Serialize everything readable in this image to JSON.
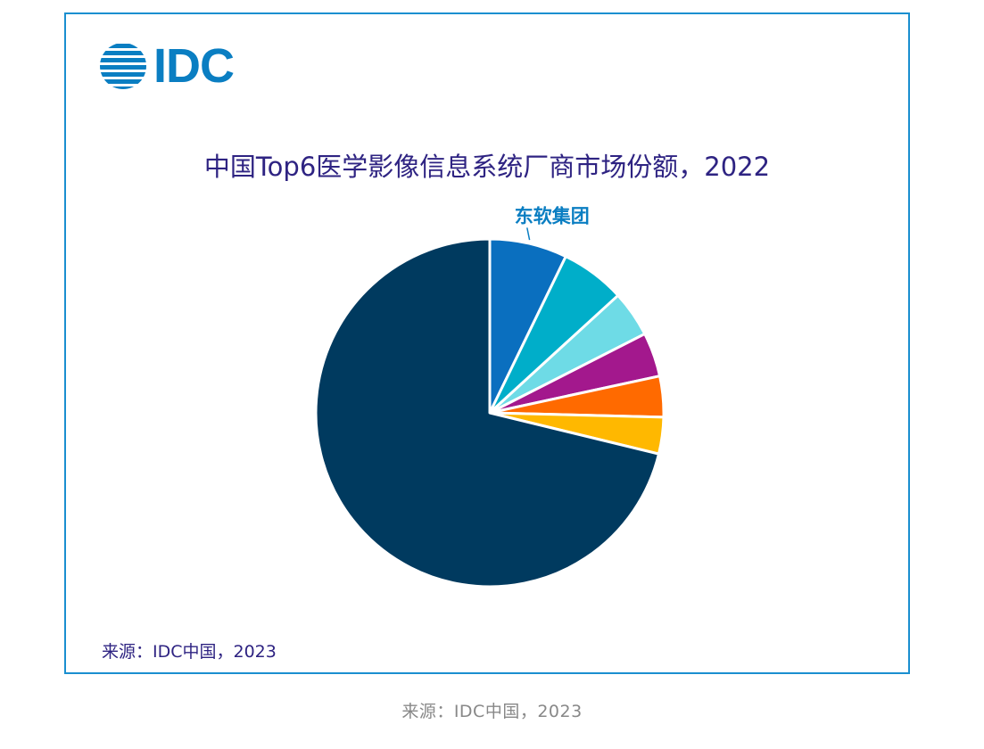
{
  "logo": {
    "text": "IDC",
    "color": "#0a7ec2"
  },
  "chart_data": {
    "type": "pie",
    "title": "中国Top6医学影像信息系统厂商市场份额，2022",
    "slices": [
      {
        "label": "东软集团",
        "value": 7.2,
        "color": "#0a6fbf"
      },
      {
        "label": "",
        "value": 6.0,
        "color": "#00aec9"
      },
      {
        "label": "",
        "value": 4.3,
        "color": "#6edbe6"
      },
      {
        "label": "",
        "value": 4.1,
        "color": "#a3188d"
      },
      {
        "label": "",
        "value": 3.8,
        "color": "#ff6a00"
      },
      {
        "label": "",
        "value": 3.4,
        "color": "#ffb800"
      },
      {
        "label": "",
        "value": 71.2,
        "color": "#003a5f"
      }
    ],
    "label_color": "#0a7ec2",
    "start_angle": "12 o'clock, clockwise"
  },
  "source_note": "来源：IDC中国，2023",
  "caption": "来源：IDC中国，2023"
}
